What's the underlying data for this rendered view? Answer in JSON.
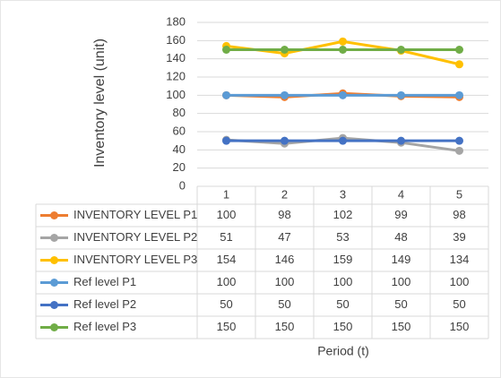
{
  "chart_data": {
    "type": "line",
    "y_axis_label": "Inventory level (unit)",
    "x_axis_label": "Period (t)",
    "categories": [
      1,
      2,
      3,
      4,
      5
    ],
    "ylim": [
      0,
      180
    ],
    "yticks": [
      0,
      20,
      40,
      60,
      80,
      100,
      120,
      140,
      160,
      180
    ],
    "grid": true,
    "data_table": true,
    "series": [
      {
        "name": "INVENTORY LEVEL P1",
        "color": "#ed7d31",
        "values": [
          100,
          98,
          102,
          99,
          98
        ]
      },
      {
        "name": "INVENTORY LEVEL P2",
        "color": "#a5a5a5",
        "values": [
          51,
          47,
          53,
          48,
          39
        ]
      },
      {
        "name": "INVENTORY LEVEL P3",
        "color": "#ffc000",
        "values": [
          154,
          146,
          159,
          149,
          134
        ]
      },
      {
        "name": "Ref level P1",
        "color": "#5b9bd5",
        "values": [
          100,
          100,
          100,
          100,
          100
        ]
      },
      {
        "name": "Ref level P2",
        "color": "#4472c4",
        "values": [
          50,
          50,
          50,
          50,
          50
        ]
      },
      {
        "name": "Ref level P3",
        "color": "#70ad47",
        "values": [
          150,
          150,
          150,
          150,
          150
        ]
      }
    ]
  }
}
